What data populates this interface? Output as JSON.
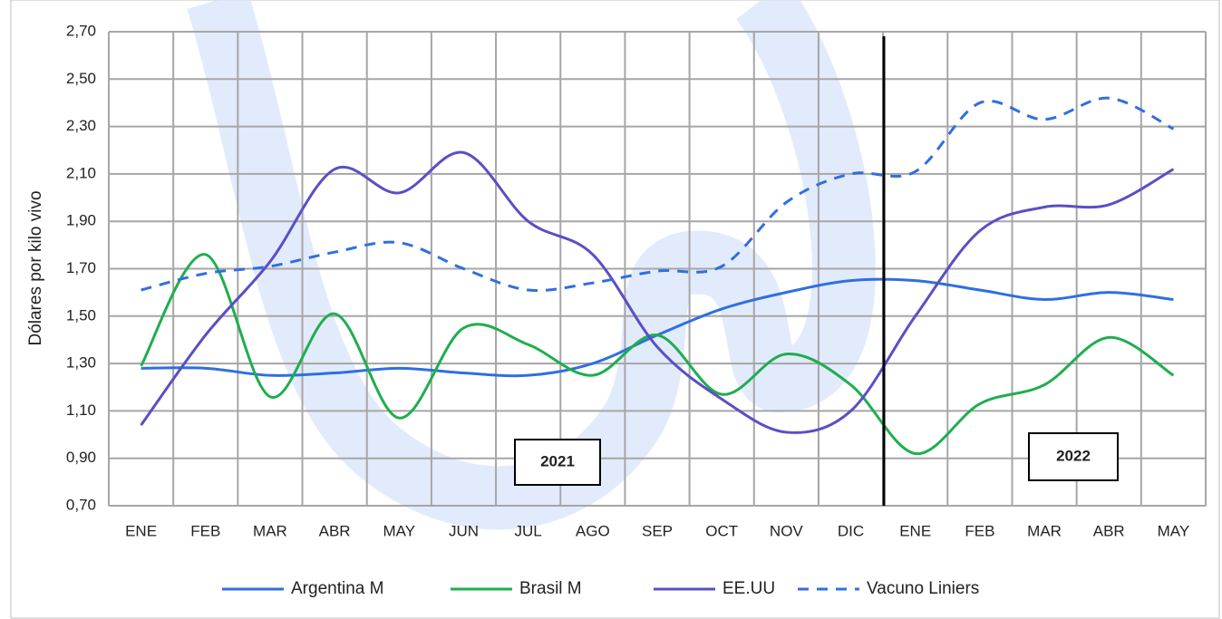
{
  "chart_data": {
    "type": "line",
    "y_label": "Dólares por kilo vivo",
    "categories": [
      "ENE",
      "FEB",
      "MAR",
      "ABR",
      "MAY",
      "JUN",
      "JUL",
      "AGO",
      "SEP",
      "OCT",
      "NOV",
      "DIC",
      "ENE",
      "FEB",
      "MAR",
      "ABR",
      "MAY"
    ],
    "series": [
      {
        "name": "Argentina M",
        "color": "#2f6fe0",
        "dashed": false,
        "values": [
          1.28,
          1.28,
          1.25,
          1.26,
          1.28,
          1.26,
          1.25,
          1.3,
          1.42,
          1.53,
          1.6,
          1.65,
          1.65,
          1.61,
          1.57,
          1.6,
          1.57
        ]
      },
      {
        "name": "Brasil M",
        "color": "#1fae4f",
        "dashed": false,
        "values": [
          1.29,
          1.76,
          1.16,
          1.51,
          1.07,
          1.45,
          1.38,
          1.25,
          1.42,
          1.17,
          1.34,
          1.21,
          0.92,
          1.13,
          1.21,
          1.41,
          1.25
        ]
      },
      {
        "name": "EE.UU",
        "color": "#5a4fc4",
        "dashed": false,
        "values": [
          1.04,
          1.42,
          1.73,
          2.12,
          2.02,
          2.19,
          1.9,
          1.76,
          1.37,
          1.15,
          1.01,
          1.1,
          1.5,
          1.86,
          1.96,
          1.97,
          2.12
        ]
      },
      {
        "name": "Vacuno Liniers",
        "color": "#2f6fe0",
        "dashed": true,
        "values": [
          1.61,
          1.68,
          1.71,
          1.77,
          1.81,
          1.7,
          1.61,
          1.64,
          1.69,
          1.71,
          1.98,
          2.1,
          2.11,
          2.4,
          2.33,
          2.42,
          2.29
        ]
      }
    ],
    "ylim": [
      0.7,
      2.7
    ],
    "yticks": [
      {
        "value": 0.7,
        "label": "0,70"
      },
      {
        "value": 0.9,
        "label": "0,90"
      },
      {
        "value": 1.1,
        "label": "1,10"
      },
      {
        "value": 1.3,
        "label": "1,30"
      },
      {
        "value": 1.5,
        "label": "1,50"
      },
      {
        "value": 1.7,
        "label": "1,70"
      },
      {
        "value": 1.9,
        "label": "1,90"
      },
      {
        "value": 2.1,
        "label": "2,10"
      },
      {
        "value": 2.3,
        "label": "2,30"
      },
      {
        "value": 2.5,
        "label": "2,50"
      },
      {
        "value": 2.7,
        "label": "2,70"
      }
    ],
    "grid": true,
    "annotations": [
      "2021",
      "2022"
    ],
    "legend": "bottom"
  }
}
